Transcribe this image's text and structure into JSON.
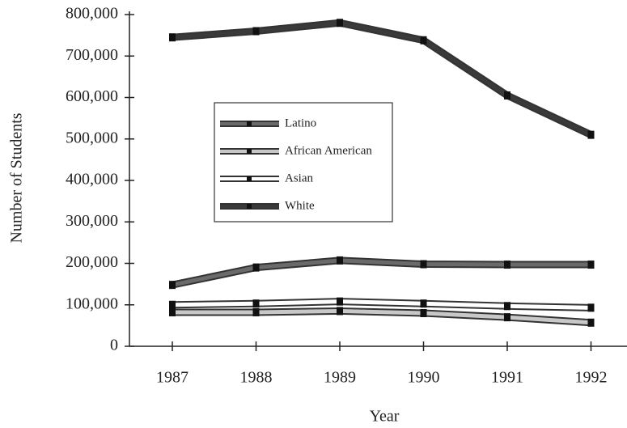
{
  "chart_data": {
    "type": "line",
    "x_label": "Year",
    "y_label": "Number of Students",
    "categories": [
      "1987",
      "1988",
      "1989",
      "1990",
      "1991",
      "1992"
    ],
    "series": [
      {
        "name": "Latino",
        "color": "#6a6a6a",
        "values": [
          148000,
          190000,
          207000,
          198000,
          197000,
          197000
        ]
      },
      {
        "name": "African American",
        "color": "#c8c8c8",
        "values": [
          82000,
          82000,
          85000,
          80000,
          70000,
          57000
        ]
      },
      {
        "name": "Asian",
        "color": "#ffffff",
        "values": [
          100000,
          103000,
          108000,
          103000,
          97000,
          93000
        ]
      },
      {
        "name": "White",
        "color": "#3a3a3a",
        "values": [
          745000,
          760000,
          780000,
          738000,
          605000,
          510000
        ]
      }
    ],
    "ylim": [
      0,
      800000
    ],
    "yticks": [
      0,
      {
        "value": 100000,
        "label": "100,000"
      },
      {
        "value": 200000,
        "label": "200,000"
      },
      {
        "value": 300000,
        "label": "300,000"
      },
      {
        "value": 400000,
        "label": "400,000"
      },
      {
        "value": 500000,
        "label": "500,000"
      },
      {
        "value": 600000,
        "label": "600,000"
      },
      {
        "value": 700000,
        "label": "700,000"
      },
      {
        "value": 800000,
        "label": "800,000"
      }
    ],
    "legend": "upper-left"
  }
}
